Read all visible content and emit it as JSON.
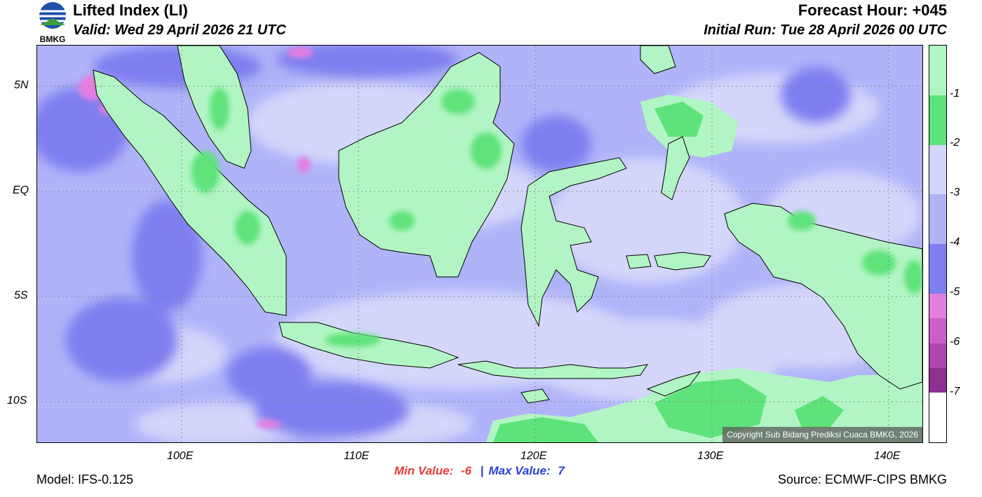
{
  "header": {
    "logo_text": "BMKG",
    "title": "Lifted Index (LI)",
    "valid": "Valid: Wed 29 April 2026 21 UTC",
    "forecast_hour": "Forecast Hour: +045",
    "initial_run": "Initial Run: Tue 28 April 2026 00 UTC"
  },
  "axes": {
    "lat_labels": [
      "5N",
      "EQ",
      "5S",
      "10S"
    ],
    "lon_labels": [
      "100E",
      "110E",
      "120E",
      "130E",
      "140E"
    ]
  },
  "legend": {
    "labels": [
      "-1",
      "-2",
      "-3",
      "-4",
      "-5",
      "-6",
      "-7"
    ],
    "colors": [
      "#b2f5c4",
      "#5ee37a",
      "#d4d6fb",
      "#b0b3f8",
      "#7f7ef0",
      "#e47fe0",
      "#cc5ec8",
      "#b146b0",
      "#8f2f92"
    ]
  },
  "map": {
    "palette": {
      "ocean_main": "#b0b3f8",
      "ocean_light": "#d4d6fb",
      "ocean_dark": "#7f7ef0",
      "land": "#b2f5c4",
      "land_dark": "#5ee37a",
      "magenta": "#e47fe0"
    },
    "copyright": "Copyright Sub Bidang Prediksi Cuaca BMKG, 2026"
  },
  "footer": {
    "model": "Model: IFS-0.125",
    "min_label": "Min Value:",
    "min_value": "-6",
    "separator": "|",
    "max_label": "Max Value:",
    "max_value": "7",
    "source": "Source: ECMWF-CIPS BMKG"
  }
}
